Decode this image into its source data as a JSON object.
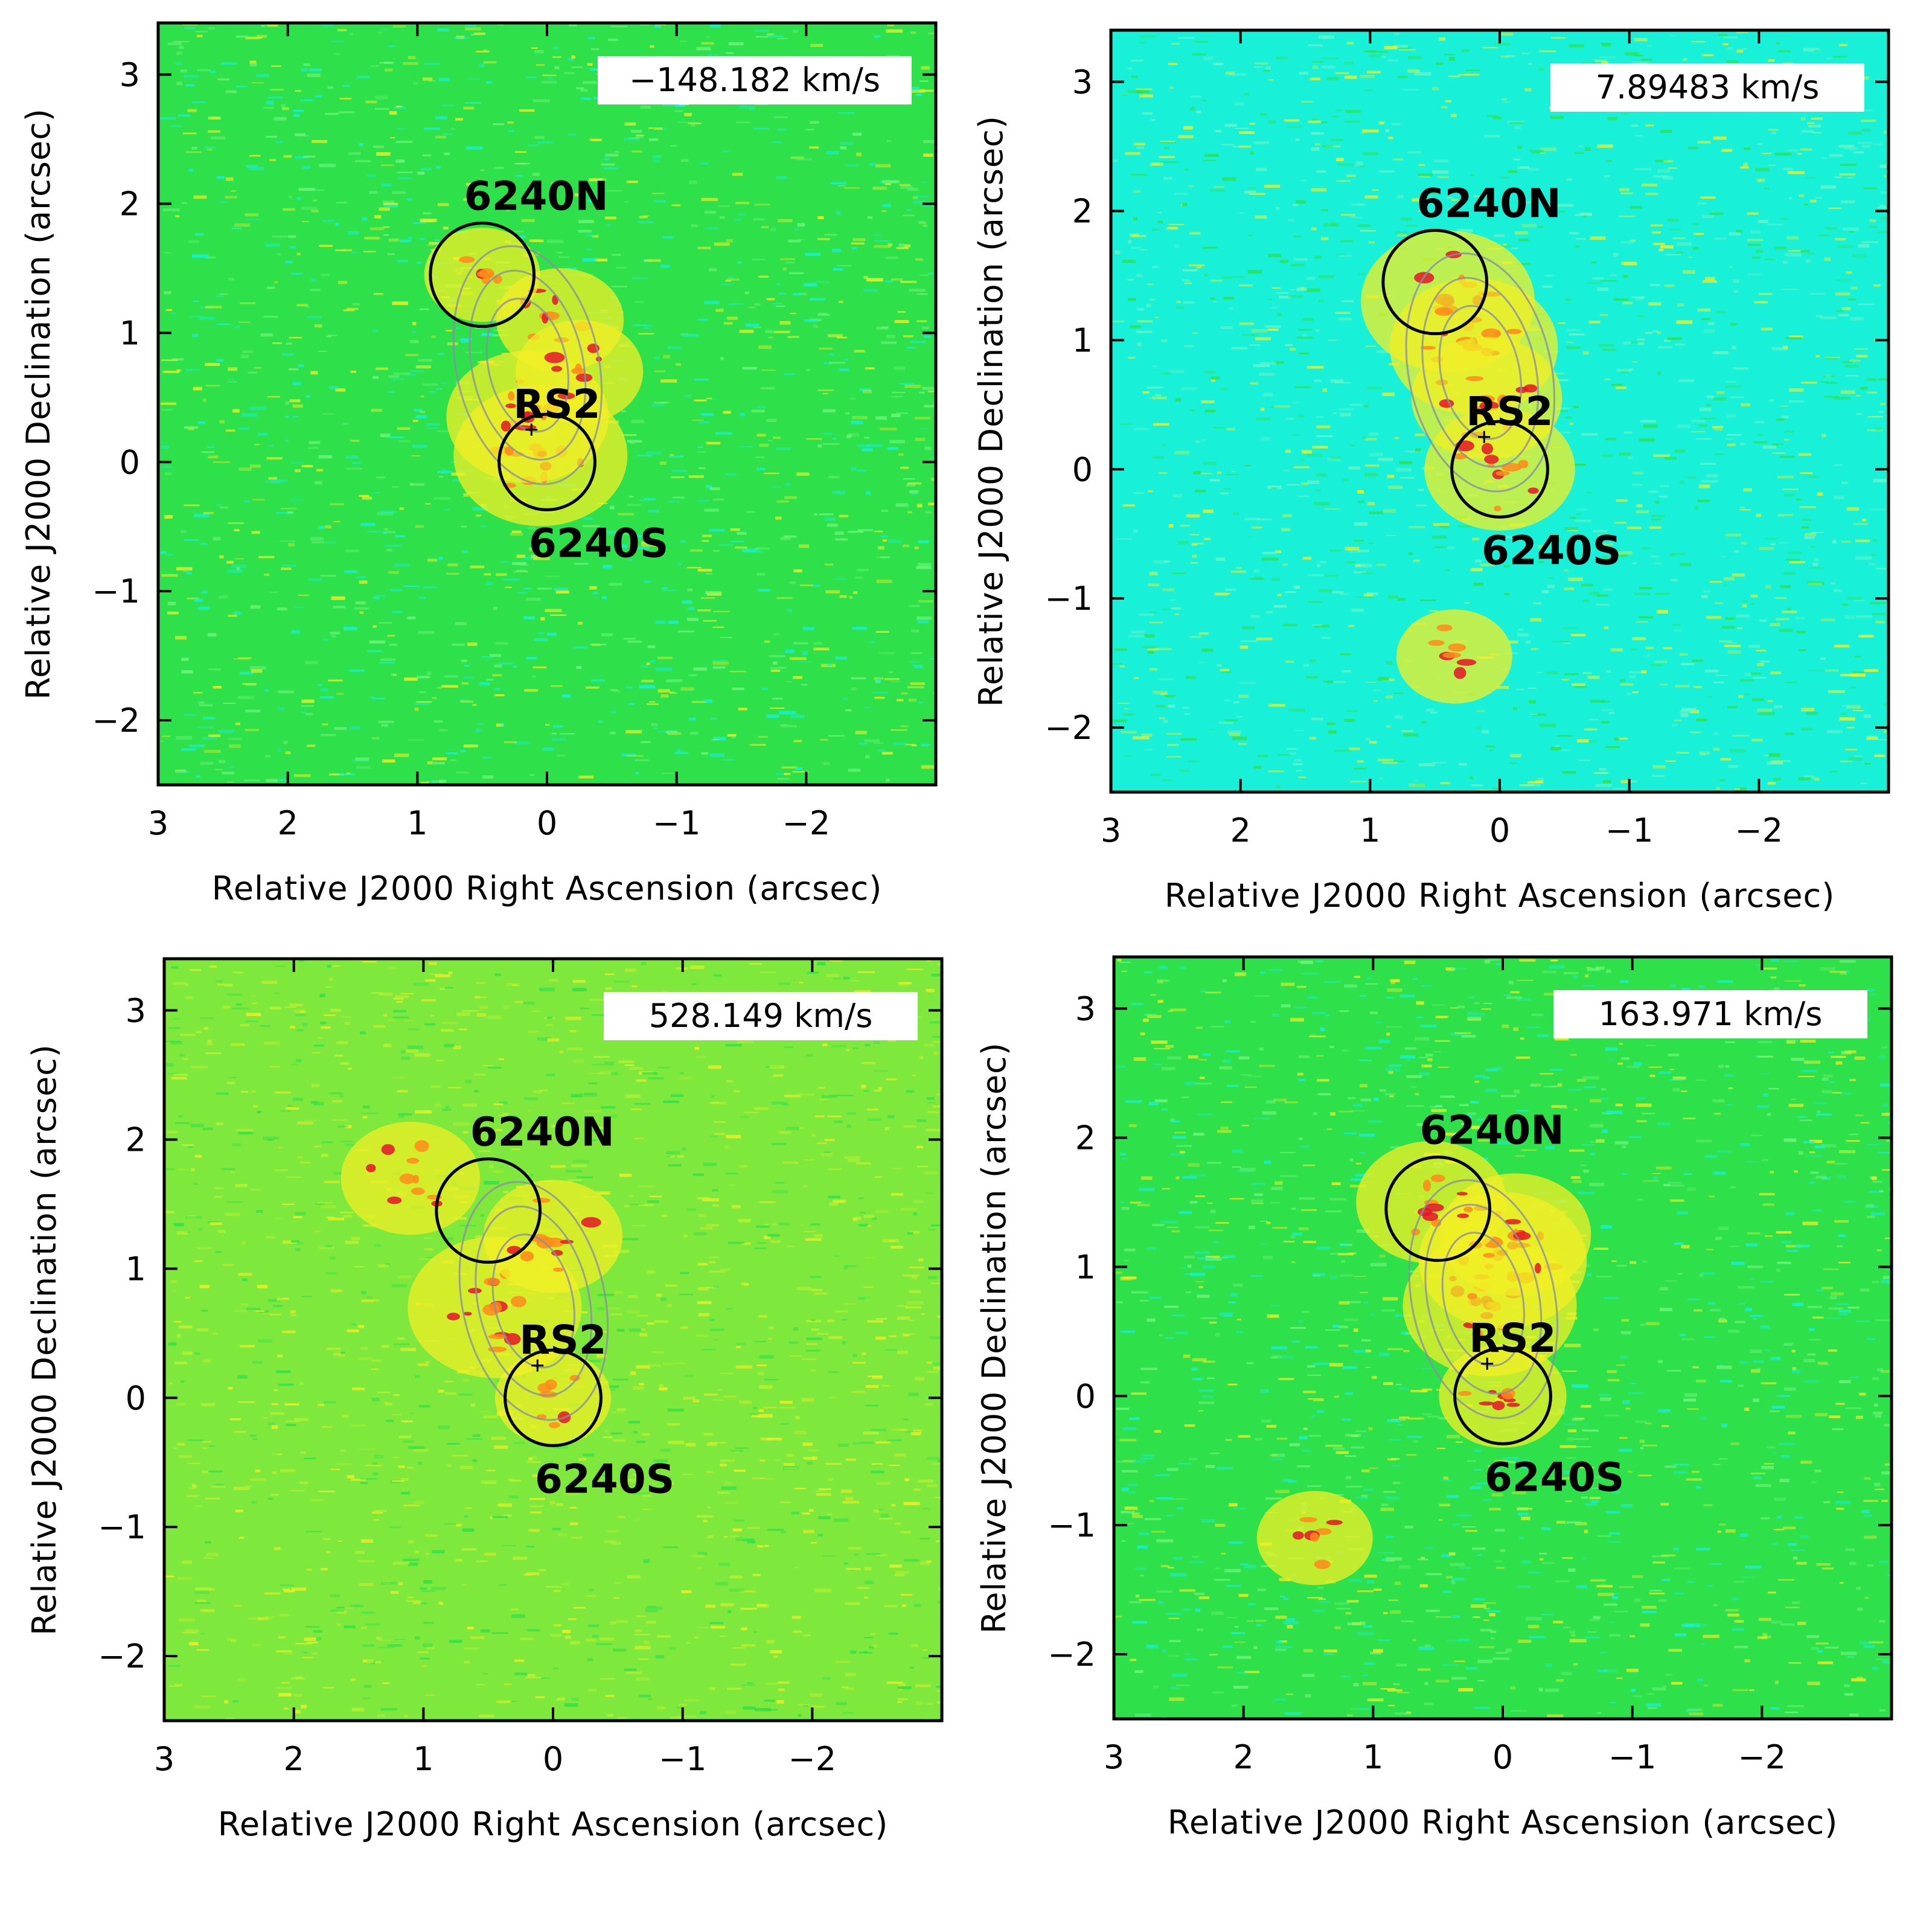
{
  "figure": {
    "colors": {
      "background": "#ffffff",
      "frame": "#000000",
      "map_green": "#2ee04a",
      "map_cyan": "#19f0d8",
      "map_yellow": "#f2ef26",
      "map_orange": "#ff8a1c",
      "map_red": "#e4142a",
      "contour": "#8a8ea0"
    }
  },
  "chart_data": [
    {
      "type": "heatmap",
      "panel": "top-left",
      "velocity_label": "−148.182 km/s",
      "xlabel": "Relative J2000 Right Ascension (arcsec)",
      "ylabel": "Relative J2000 Declination (arcsec)",
      "xlim": [
        3,
        -3
      ],
      "ylim": [
        -2.5,
        3.4
      ],
      "x_ticks": [
        "3",
        "2",
        "1",
        "0",
        "−1",
        "−2"
      ],
      "y_ticks": [
        "3",
        "2",
        "1",
        "0",
        "−1",
        "−2"
      ],
      "background_tint": "green",
      "sources": [
        {
          "name": "6240N",
          "x": 0.5,
          "y": 1.45,
          "radius": 0.4
        },
        {
          "name": "6240S",
          "x": 0.0,
          "y": 0.0,
          "radius": 0.37
        },
        {
          "name": "RS2",
          "x": 0.12,
          "y": 0.25,
          "marker": "cross"
        }
      ],
      "emission_peaks": [
        {
          "x": 0.05,
          "y": 0.05,
          "level": 1.0
        },
        {
          "x": 0.15,
          "y": 0.35,
          "level": 0.9
        },
        {
          "x": -0.1,
          "y": 1.1,
          "level": 0.6
        },
        {
          "x": -0.25,
          "y": 0.7,
          "level": 0.6
        },
        {
          "x": 0.5,
          "y": 1.45,
          "level": 0.5
        }
      ]
    },
    {
      "type": "heatmap",
      "panel": "top-right",
      "velocity_label": "7.89483 km/s",
      "xlabel": "Relative J2000 Right Ascension (arcsec)",
      "ylabel": "Relative J2000 Declination (arcsec)",
      "xlim": [
        3,
        -3
      ],
      "ylim": [
        -2.5,
        3.4
      ],
      "x_ticks": [
        "3",
        "2",
        "1",
        "0",
        "−1",
        "−2"
      ],
      "y_ticks": [
        "3",
        "2",
        "1",
        "0",
        "−1",
        "−2"
      ],
      "background_tint": "cyan",
      "sources": [
        {
          "name": "6240N",
          "x": 0.5,
          "y": 1.45,
          "radius": 0.4
        },
        {
          "name": "6240S",
          "x": 0.0,
          "y": 0.0,
          "radius": 0.37
        },
        {
          "name": "RS2",
          "x": 0.12,
          "y": 0.25,
          "marker": "cross"
        }
      ],
      "emission_peaks": [
        {
          "x": 0.4,
          "y": 1.3,
          "level": 1.0
        },
        {
          "x": 0.2,
          "y": 0.95,
          "level": 0.95
        },
        {
          "x": 0.1,
          "y": 0.55,
          "level": 0.8
        },
        {
          "x": 0.0,
          "y": 0.0,
          "level": 0.8
        },
        {
          "x": 0.35,
          "y": -1.45,
          "level": 0.5
        }
      ]
    },
    {
      "type": "heatmap",
      "panel": "bottom-left",
      "velocity_label": "528.149 km/s",
      "xlabel": "Relative J2000 Right Ascension (arcsec)",
      "ylabel": "Relative J2000 Declination (arcsec)",
      "xlim": [
        3,
        -3
      ],
      "ylim": [
        -2.5,
        3.4
      ],
      "x_ticks": [
        "3",
        "2",
        "1",
        "0",
        "−1",
        "−2"
      ],
      "y_ticks": [
        "3",
        "2",
        "1",
        "0",
        "−1",
        "−2"
      ],
      "background_tint": "yellow-green",
      "sources": [
        {
          "name": "6240N",
          "x": 0.5,
          "y": 1.45,
          "radius": 0.4
        },
        {
          "name": "6240S",
          "x": 0.0,
          "y": 0.0,
          "radius": 0.37
        },
        {
          "name": "RS2",
          "x": 0.12,
          "y": 0.25,
          "marker": "cross"
        }
      ],
      "emission_peaks": [
        {
          "x": 0.45,
          "y": 0.7,
          "level": 1.0
        },
        {
          "x": 0.0,
          "y": 1.25,
          "level": 0.7
        },
        {
          "x": 1.1,
          "y": 1.7,
          "level": 0.7
        },
        {
          "x": 0.0,
          "y": 0.0,
          "level": 0.5
        }
      ]
    },
    {
      "type": "heatmap",
      "panel": "bottom-right",
      "velocity_label": "163.971 km/s",
      "xlabel": "Relative J2000 Right Ascension (arcsec)",
      "ylabel": "Relative J2000 Declination (arcsec)",
      "xlim": [
        3,
        -3
      ],
      "ylim": [
        -2.5,
        3.4
      ],
      "x_ticks": [
        "3",
        "2",
        "1",
        "0",
        "−1",
        "−2"
      ],
      "y_ticks": [
        "3",
        "2",
        "1",
        "0",
        "−1",
        "−2"
      ],
      "background_tint": "green",
      "sources": [
        {
          "name": "6240N",
          "x": 0.5,
          "y": 1.45,
          "radius": 0.4
        },
        {
          "name": "6240S",
          "x": 0.0,
          "y": 0.0,
          "radius": 0.37
        },
        {
          "name": "RS2",
          "x": 0.12,
          "y": 0.25,
          "marker": "cross"
        }
      ],
      "emission_peaks": [
        {
          "x": 0.1,
          "y": 0.7,
          "level": 1.0
        },
        {
          "x": 0.0,
          "y": 1.05,
          "level": 0.95
        },
        {
          "x": -0.1,
          "y": 1.25,
          "level": 0.8
        },
        {
          "x": 0.55,
          "y": 1.5,
          "level": 0.8
        },
        {
          "x": 0.0,
          "y": 0.0,
          "level": 0.6
        },
        {
          "x": 1.45,
          "y": -1.1,
          "level": 0.5
        }
      ]
    }
  ]
}
